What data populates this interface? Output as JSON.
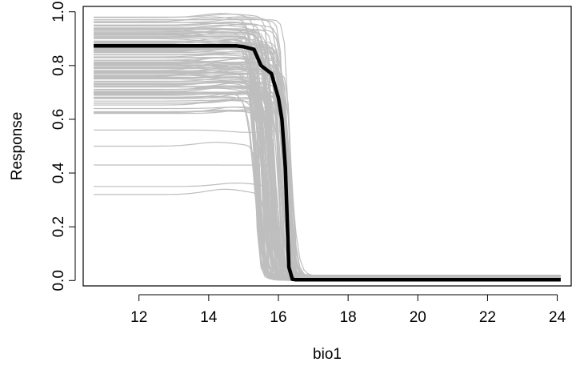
{
  "chart_data": {
    "type": "line",
    "xlabel": "bio1",
    "ylabel": "Response",
    "xlim": [
      10.4,
      24.4
    ],
    "ylim": [
      -0.02,
      1.02
    ],
    "x_ticks": [
      12,
      14,
      16,
      18,
      20,
      22,
      24
    ],
    "x_tick_labels": [
      "12",
      "14",
      "16",
      "18",
      "20",
      "22",
      "24"
    ],
    "y_ticks": [
      0.0,
      0.2,
      0.4,
      0.6,
      0.8,
      1.0
    ],
    "y_tick_labels": [
      "0.0",
      "0.2",
      "0.4",
      "0.6",
      "0.8",
      "1.0"
    ],
    "grid": false,
    "box": true,
    "background_series": {
      "color": "#bebebe",
      "x_range": [
        10.7,
        24.1
      ],
      "count": 130,
      "start_levels": [
        0.98,
        0.97,
        0.96,
        0.95,
        0.94,
        0.93,
        0.92,
        0.91,
        0.9,
        0.89,
        0.88,
        0.87,
        0.86,
        0.85,
        0.84,
        0.83,
        0.82,
        0.81,
        0.8,
        0.79,
        0.78,
        0.77,
        0.76,
        0.75,
        0.74,
        0.73,
        0.72,
        0.71,
        0.7,
        0.68,
        0.66,
        0.64,
        0.56,
        0.5,
        0.43,
        0.35,
        0.32
      ],
      "drop_x_range": [
        15.3,
        16.4
      ],
      "end_level_range": [
        0.0,
        0.02
      ]
    },
    "series": [
      {
        "color": "#000000",
        "x": [
          10.7,
          12.0,
          13.0,
          14.0,
          14.8,
          15.0,
          15.3,
          15.5,
          15.8,
          16.0,
          16.1,
          16.2,
          16.3,
          16.4,
          16.5,
          18.0,
          20.0,
          22.0,
          24.1
        ],
        "y": [
          0.873,
          0.873,
          0.873,
          0.873,
          0.873,
          0.87,
          0.86,
          0.8,
          0.77,
          0.68,
          0.6,
          0.42,
          0.05,
          0.005,
          0.003,
          0.003,
          0.003,
          0.003,
          0.003
        ]
      }
    ]
  }
}
